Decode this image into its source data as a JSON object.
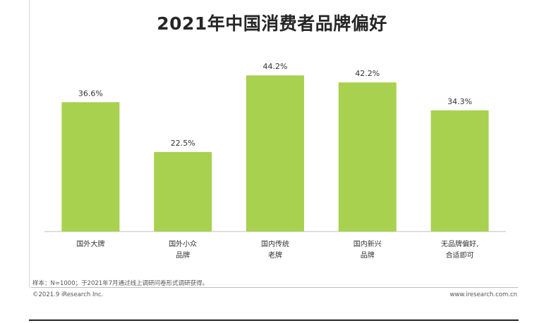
{
  "chart_data": {
    "type": "bar",
    "title": "2021年中国消费者品牌偏好",
    "categories": [
      [
        "国外大牌"
      ],
      [
        "国外小众",
        "品牌"
      ],
      [
        "国内传统",
        "老牌"
      ],
      [
        "国内新兴",
        "品牌"
      ],
      [
        "无品牌偏好,",
        "合适即可"
      ]
    ],
    "values": [
      36.6,
      22.5,
      44.2,
      42.2,
      34.3
    ],
    "value_labels": [
      "36.6%",
      "22.5%",
      "44.2%",
      "42.2%",
      "34.3%"
    ],
    "unit": "%",
    "ylim": [
      0,
      50
    ],
    "grid": false,
    "legend": "none",
    "bar_color": "#a8d14f"
  },
  "note": "样本：N=1000；于2021年7月通过线上调研问卷形式调研获得。",
  "copyright": "©2021.9 iResearch Inc.",
  "website": "www.iresearch.com.cn"
}
